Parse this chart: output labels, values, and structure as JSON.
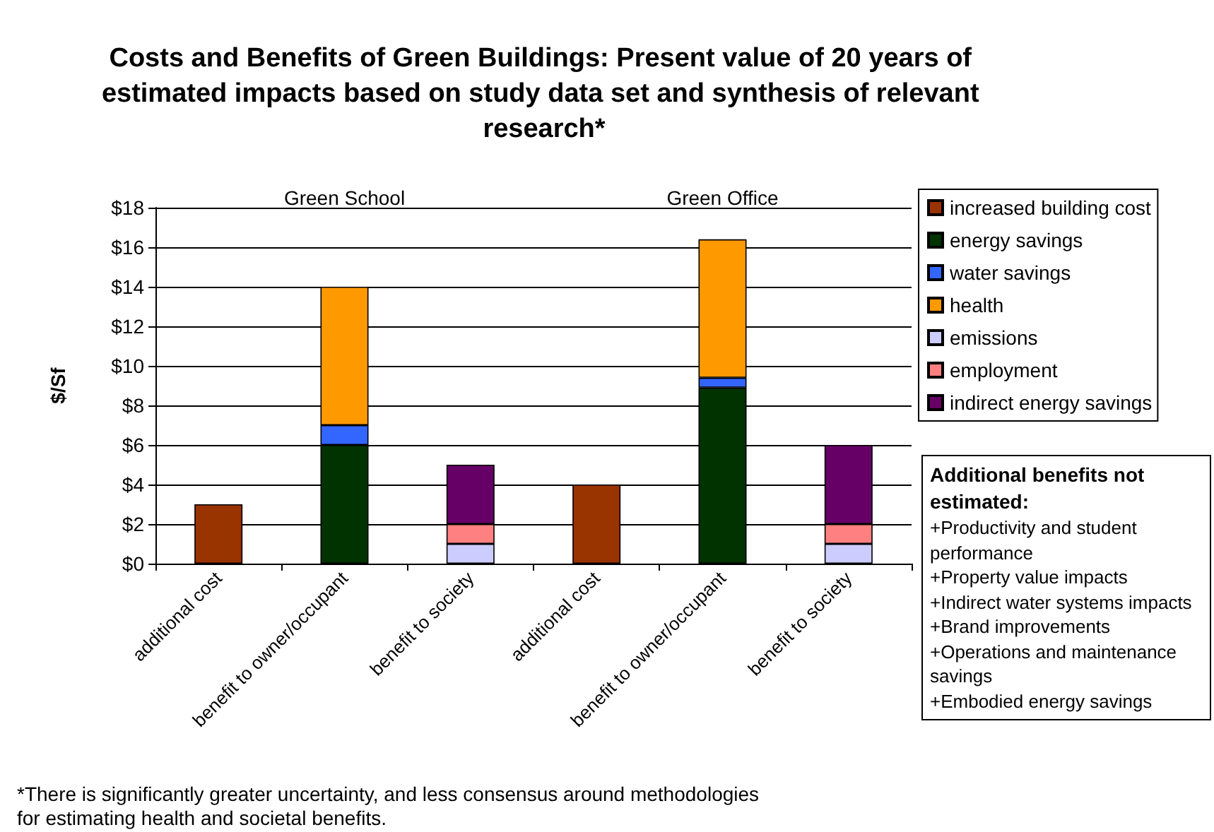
{
  "chart_data": {
    "type": "bar",
    "stacked": true,
    "title": "Costs and Benefits of Green Buildings: Present value of 20 years of estimated impacts based on study data set and synthesis of relevant research*",
    "ylabel": "$/Sf",
    "categories": [
      "additional cost",
      "benefit to owner/occupant",
      "benefit to society",
      "additional cost",
      "benefit to owner/occupant",
      "benefit to society"
    ],
    "series": [
      {
        "name": "increased building cost",
        "color": "#993300",
        "values": [
          3,
          null,
          null,
          4,
          null,
          null
        ]
      },
      {
        "name": "energy savings",
        "color": "#003300",
        "values": [
          null,
          6,
          null,
          null,
          8.9,
          null
        ]
      },
      {
        "name": "water savings",
        "color": "#3366ff",
        "values": [
          null,
          1,
          null,
          null,
          0.5,
          null
        ]
      },
      {
        "name": "health",
        "color": "#ff9900",
        "values": [
          null,
          7,
          null,
          null,
          7.0,
          null
        ]
      },
      {
        "name": "emissions",
        "color": "#ccccff",
        "values": [
          null,
          null,
          1,
          null,
          null,
          1
        ]
      },
      {
        "name": "employment",
        "color": "#ff8080",
        "values": [
          null,
          null,
          1,
          null,
          null,
          1
        ]
      },
      {
        "name": "indirect energy savings",
        "color": "#660066",
        "values": [
          null,
          null,
          3,
          null,
          null,
          4
        ]
      }
    ],
    "ylim": [
      0,
      18
    ],
    "yticks": [
      {
        "value": 0,
        "label": "$0"
      },
      {
        "value": 2,
        "label": "$2"
      },
      {
        "value": 4,
        "label": "$4"
      },
      {
        "value": 6,
        "label": "$6"
      },
      {
        "value": 8,
        "label": "$8"
      },
      {
        "value": 10,
        "label": "$10"
      },
      {
        "value": 12,
        "label": "$12"
      },
      {
        "value": 14,
        "label": "$14"
      },
      {
        "value": 16,
        "label": "$16"
      },
      {
        "value": 18,
        "label": "$18"
      }
    ],
    "grid": "y",
    "legend": "top right",
    "annotations": [
      "Green School",
      "Green Office",
      "*There is significantly greater uncertainty, and less consensus around methodologies for estimating health and societal benefits.",
      "Additional benefits not estimated:",
      "+Productivity and student performance",
      "+Property value impacts",
      "+Indirect water systems impacts",
      "+Brand improvements",
      "+Operations and maintenance savings",
      "+Embodied energy savings"
    ]
  }
}
